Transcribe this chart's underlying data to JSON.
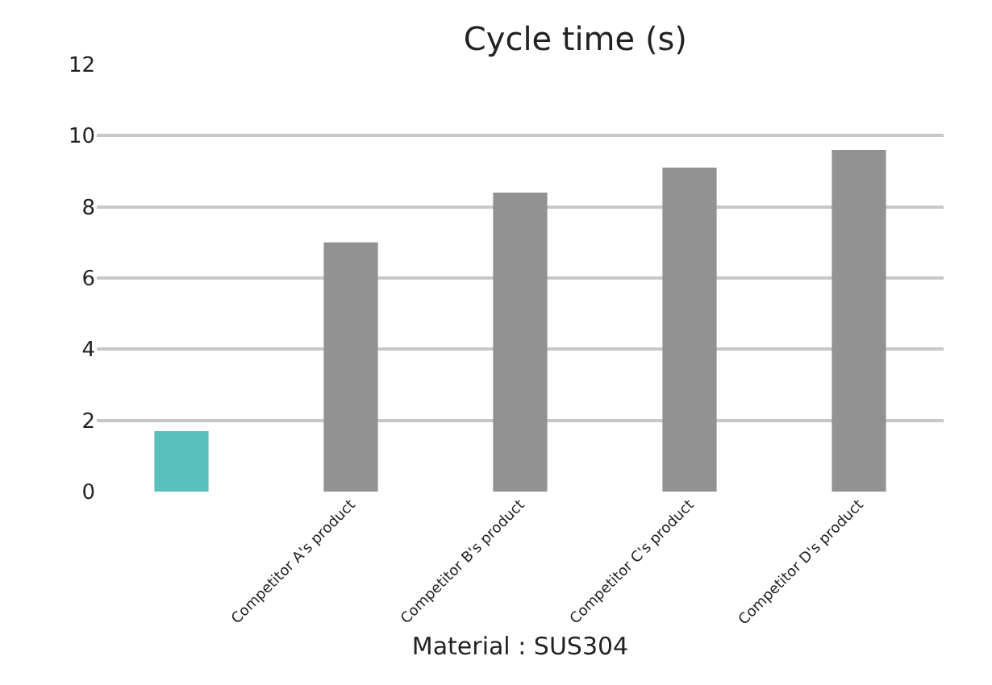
{
  "chart_data": {
    "type": "bar",
    "title": "Cycle time (s)",
    "xlabel": "Material : SUS304",
    "categories": [
      null,
      "Competitor A's product",
      "Competitor B's product",
      "Competitor C's product",
      "Competitor D's product"
    ],
    "values": [
      1.7,
      7.0,
      8.4,
      9.1,
      9.6
    ],
    "colors": [
      "#5bbfbb",
      "#929292",
      "#929292",
      "#929292",
      "#929292"
    ],
    "ylim": [
      0,
      12
    ],
    "yticks": [
      0,
      2,
      4,
      6,
      8,
      10,
      12
    ],
    "grid": "y"
  }
}
